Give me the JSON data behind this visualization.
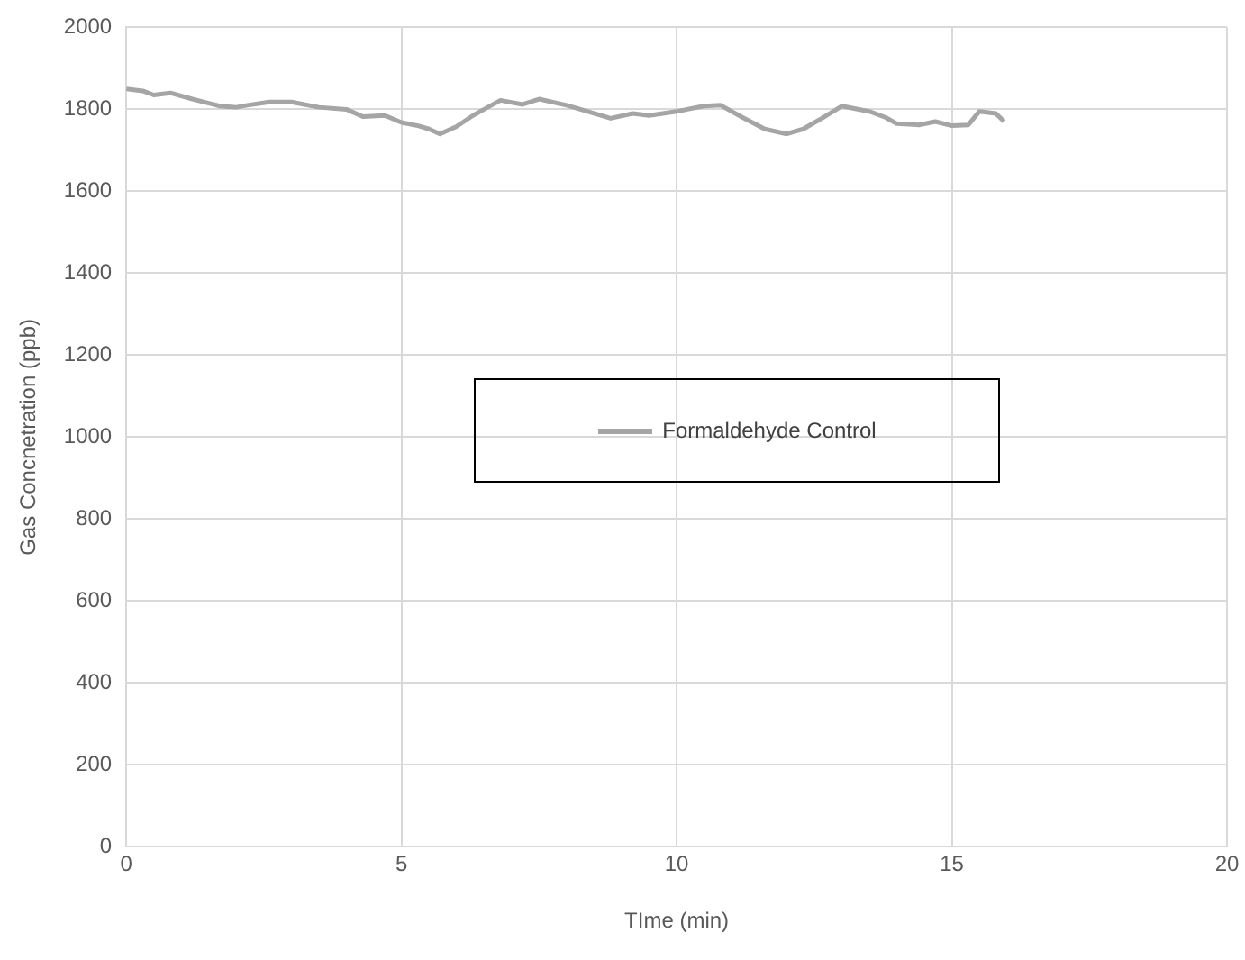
{
  "chart_data": {
    "type": "line",
    "xlabel": "TIme (min)",
    "ylabel": "Gas Concnetration (ppb)",
    "x": [
      0,
      0.3,
      0.5,
      0.8,
      1.2,
      1.5,
      1.7,
      2,
      2.2,
      2.6,
      3,
      3.5,
      4,
      4.3,
      4.7,
      5,
      5.3,
      5.5,
      5.7,
      6,
      6.3,
      6.5,
      6.8,
      7.2,
      7.5,
      8,
      8.5,
      8.8,
      9.2,
      9.5,
      10,
      10.5,
      10.8,
      11.2,
      11.6,
      12,
      12.3,
      12.6,
      13,
      13.5,
      13.8,
      14,
      14.4,
      14.7,
      15,
      15.3,
      15.5,
      15.8,
      15.95
    ],
    "series": [
      {
        "name": "Formaldehyde Control",
        "color": "#a5a5a5",
        "values": [
          1850,
          1845,
          1835,
          1840,
          1825,
          1815,
          1808,
          1805,
          1810,
          1818,
          1818,
          1805,
          1800,
          1782,
          1785,
          1768,
          1760,
          1752,
          1740,
          1758,
          1785,
          1800,
          1822,
          1812,
          1825,
          1810,
          1790,
          1778,
          1790,
          1785,
          1795,
          1808,
          1810,
          1780,
          1752,
          1740,
          1752,
          1775,
          1808,
          1795,
          1780,
          1765,
          1762,
          1770,
          1760,
          1762,
          1795,
          1790,
          1770
        ]
      }
    ],
    "xlim": [
      0,
      20
    ],
    "xticks": [
      0,
      5,
      10,
      15,
      20
    ],
    "ylim": [
      0,
      2000
    ],
    "yticks": [
      0,
      200,
      400,
      600,
      800,
      1000,
      1200,
      1400,
      1600,
      1800,
      2000
    ],
    "grid": true,
    "legend": "center",
    "marker": "none",
    "line_style": "solid"
  }
}
